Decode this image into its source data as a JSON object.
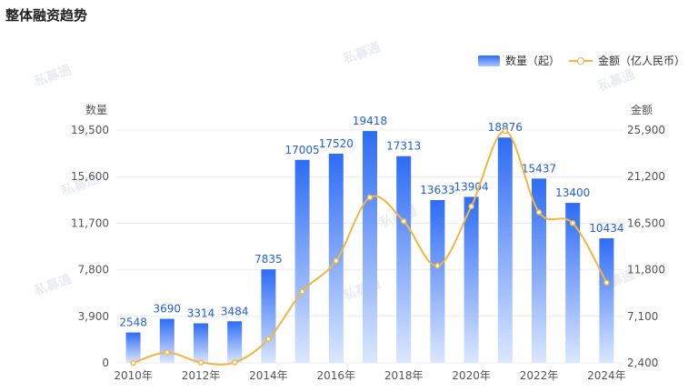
{
  "title": "整体融资趋势",
  "legend": {
    "count_label": "数量（起）",
    "amount_label": "金额（亿人民币）"
  },
  "watermarks": [
    "私募通",
    "私募通",
    "私募通",
    "私募通",
    "私募通",
    "私募通",
    "私募通",
    "私募通"
  ],
  "colors": {
    "bar_top": "#2d6cf5",
    "bar_bottom": "#dbe7ff",
    "line": "#f2b640",
    "label": "#1f5fe0",
    "grid": "#ececec"
  },
  "chart_data": {
    "type": "bar",
    "categories": [
      "2010年",
      "2011年",
      "2012年",
      "2013年",
      "2014年",
      "2015年",
      "2016年",
      "2017年",
      "2018年",
      "2019年",
      "2020年",
      "2021年",
      "2022年",
      "2023年",
      "2024年"
    ],
    "x_tick_labels": [
      "2010年",
      "",
      "2012年",
      "",
      "2014年",
      "",
      "2016年",
      "",
      "2018年",
      "",
      "2020年",
      "",
      "2022年",
      "",
      "2024年"
    ],
    "series": [
      {
        "name": "数量（起）",
        "type": "bar",
        "axis": "left",
        "values": [
          2548,
          3690,
          3314,
          3484,
          7835,
          17005,
          17520,
          19418,
          17313,
          13633,
          13904,
          18876,
          15437,
          13400,
          10434
        ]
      },
      {
        "name": "金额（亿人民币）",
        "type": "line",
        "axis": "right",
        "values": [
          2400,
          3450,
          2450,
          2450,
          4800,
          9600,
          12700,
          19100,
          16700,
          12200,
          18200,
          25800,
          17600,
          16500,
          10500
        ]
      }
    ],
    "ylabel": "数量",
    "y2label": "金额",
    "ylim": [
      0,
      19500
    ],
    "yticks": [
      0,
      3900,
      7800,
      11700,
      15600,
      19500
    ],
    "ytick_labels": [
      "0",
      "3,900",
      "7,800",
      "11,700",
      "15,600",
      "19,500"
    ],
    "y2lim": [
      2400,
      25900
    ],
    "y2ticks": [
      2400,
      7100,
      11800,
      16500,
      21200,
      25900
    ],
    "y2tick_labels": [
      "2,400",
      "7,100",
      "11,800",
      "16,500",
      "21,200",
      "25,900"
    ],
    "grid": true,
    "legend_position": "top-right"
  }
}
